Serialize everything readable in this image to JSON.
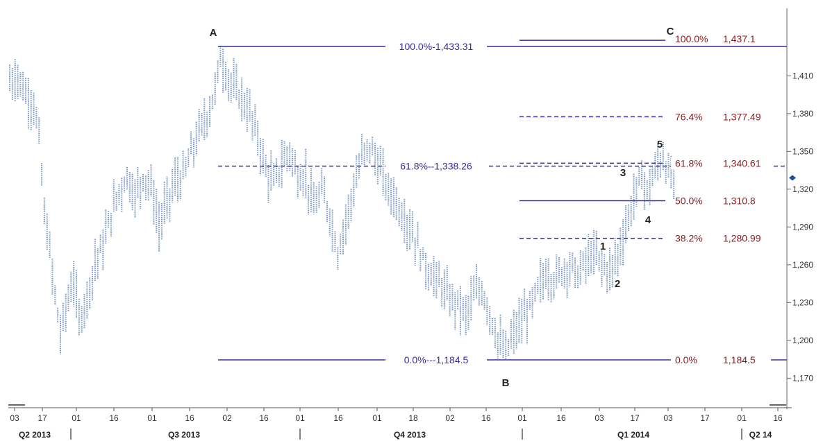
{
  "chart_data": {
    "type": "bar",
    "subtype": "ohlc-price-chart-with-fibonacci-retracements",
    "title": "",
    "xlabel": "",
    "ylabel": "",
    "y_axis_side": "right",
    "ylim": [
      1158,
      1455
    ],
    "y_ticks": [
      "1,170",
      "1,200",
      "1,230",
      "1,260",
      "1,290",
      "1,320",
      "1,350",
      "1,380",
      "1,410"
    ],
    "x_tick_labels": [
      "03",
      "17",
      "01",
      "16",
      "01",
      "16",
      "02",
      "16",
      "01",
      "16",
      "01",
      "18",
      "02",
      "16",
      "01",
      "16",
      "03",
      "17",
      "03",
      "17",
      "01",
      "16"
    ],
    "quarter_labels": [
      "Q2 2013",
      "Q3 2013",
      "Q4 2013",
      "Q1 2014",
      "Q2 14"
    ],
    "colors": {
      "bars": "#7f9bc2",
      "left_fib": "#3a2aa0",
      "right_fib_label": "#8b1a1a",
      "last_price_marker": "#1f4e9c"
    },
    "last_price_marker": 1329,
    "points": [
      {
        "label": "A",
        "value": 1433.31
      },
      {
        "label": "B",
        "value": 1184.5
      },
      {
        "label": "C",
        "value": 1437.1
      },
      {
        "label": "1",
        "value": 1272
      },
      {
        "label": "2",
        "value": 1246
      },
      {
        "label": "3",
        "value": 1333
      },
      {
        "label": "4",
        "value": 1306
      },
      {
        "label": "5",
        "value": 1349
      }
    ],
    "fib_left": [
      {
        "level": "100.0%",
        "value": 1433.31,
        "label": "100.0%-1,433.31",
        "style": "solid"
      },
      {
        "level": "61.8%",
        "value": 1338.26,
        "label": "61.8%--1,338.26",
        "style": "dashed"
      },
      {
        "level": "0.0%",
        "value": 1184.5,
        "label": "0.0%---1,184.5",
        "style": "solid"
      }
    ],
    "fib_right": [
      {
        "level": "100.0%",
        "value": 1437.1,
        "pct": "100.0%",
        "price": "1,437.1",
        "style": "solid"
      },
      {
        "level": "76.4%",
        "value": 1377.49,
        "pct": "76.4%",
        "price": "1,377.49",
        "style": "dashed"
      },
      {
        "level": "61.8%",
        "value": 1340.61,
        "pct": "61.8%",
        "price": "1,340.61",
        "style": "dashed"
      },
      {
        "level": "50.0%",
        "value": 1310.8,
        "pct": "50.0%",
        "price": "1,310.8",
        "style": "solid"
      },
      {
        "level": "38.2%",
        "value": 1280.99,
        "pct": "38.2%",
        "price": "1,280.99",
        "style": "dashed"
      },
      {
        "level": "0.0%",
        "value": 1184.5,
        "pct": "0.0%",
        "price": "1,184.5",
        "style": "solid"
      }
    ],
    "price_path": [
      [
        0,
        1405
      ],
      [
        3,
        1410
      ],
      [
        6,
        1395
      ],
      [
        9,
        1388
      ],
      [
        11,
        1360
      ],
      [
        13,
        1300
      ],
      [
        15,
        1270
      ],
      [
        17,
        1235
      ],
      [
        19,
        1205
      ],
      [
        21,
        1225
      ],
      [
        24,
        1248
      ],
      [
        26,
        1215
      ],
      [
        29,
        1235
      ],
      [
        32,
        1262
      ],
      [
        35,
        1275
      ],
      [
        38,
        1300
      ],
      [
        41,
        1318
      ],
      [
        44,
        1330
      ],
      [
        47,
        1315
      ],
      [
        50,
        1330
      ],
      [
        53,
        1322
      ],
      [
        56,
        1290
      ],
      [
        59,
        1310
      ],
      [
        62,
        1325
      ],
      [
        65,
        1330
      ],
      [
        68,
        1348
      ],
      [
        71,
        1365
      ],
      [
        74,
        1378
      ],
      [
        77,
        1398
      ],
      [
        79,
        1425
      ],
      [
        81,
        1412
      ],
      [
        84,
        1400
      ],
      [
        87,
        1392
      ],
      [
        90,
        1380
      ],
      [
        93,
        1362
      ],
      [
        96,
        1335
      ],
      [
        99,
        1325
      ],
      [
        102,
        1340
      ],
      [
        105,
        1350
      ],
      [
        108,
        1330
      ],
      [
        111,
        1330
      ],
      [
        114,
        1305
      ],
      [
        117,
        1318
      ],
      [
        120,
        1300
      ],
      [
        123,
        1270
      ],
      [
        126,
        1295
      ],
      [
        129,
        1320
      ],
      [
        132,
        1345
      ],
      [
        135,
        1354
      ],
      [
        138,
        1340
      ],
      [
        141,
        1325
      ],
      [
        144,
        1315
      ],
      [
        147,
        1300
      ],
      [
        150,
        1290
      ],
      [
        153,
        1275
      ],
      [
        156,
        1258
      ],
      [
        159,
        1250
      ],
      [
        162,
        1243
      ],
      [
        165,
        1232
      ],
      [
        168,
        1230
      ],
      [
        171,
        1220
      ],
      [
        174,
        1235
      ],
      [
        177,
        1240
      ],
      [
        180,
        1222
      ],
      [
        183,
        1200
      ],
      [
        186,
        1190
      ],
      [
        189,
        1205
      ],
      [
        192,
        1215
      ],
      [
        195,
        1225
      ],
      [
        198,
        1240
      ],
      [
        201,
        1252
      ],
      [
        204,
        1248
      ],
      [
        207,
        1255
      ],
      [
        210,
        1260
      ],
      [
        213,
        1252
      ],
      [
        216,
        1262
      ],
      [
        219,
        1268
      ],
      [
        222,
        1260
      ],
      [
        225,
        1254
      ],
      [
        228,
        1268
      ],
      [
        231,
        1290
      ],
      [
        233,
        1305
      ],
      [
        235,
        1320
      ],
      [
        237,
        1330
      ],
      [
        239,
        1318
      ],
      [
        241,
        1328
      ],
      [
        243,
        1340
      ],
      [
        245,
        1345
      ],
      [
        247,
        1332
      ],
      [
        249,
        1328
      ]
    ]
  }
}
